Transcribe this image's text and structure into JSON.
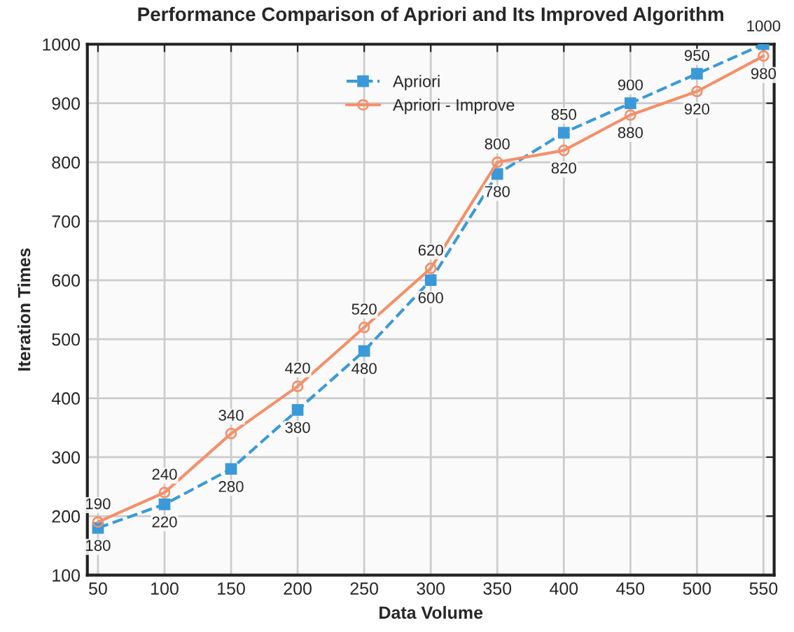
{
  "chart_data": {
    "type": "line",
    "title": "Performance Comparison of Apriori and Its Improved Algorithm",
    "xlabel": "Data Volume",
    "ylabel": "Iteration Times",
    "x": [
      50,
      100,
      150,
      200,
      250,
      300,
      350,
      400,
      450,
      500,
      550
    ],
    "series": [
      {
        "name": "Apriori",
        "color": "#3a9ad9",
        "marker": "square",
        "line_style": "dashed",
        "values": [
          180,
          220,
          280,
          380,
          480,
          600,
          780,
          850,
          900,
          950,
          1000
        ]
      },
      {
        "name": "Apriori - Improve",
        "color": "#f4906a",
        "marker": "circle",
        "line_style": "solid",
        "values": [
          190,
          240,
          340,
          420,
          520,
          620,
          800,
          820,
          880,
          920,
          980
        ]
      }
    ],
    "xlim": [
      42,
      558
    ],
    "xticks": [
      50,
      100,
      150,
      200,
      250,
      300,
      350,
      400,
      450,
      500,
      550
    ],
    "ylim": [
      100,
      1000
    ],
    "yticks": [
      100,
      200,
      300,
      400,
      500,
      600,
      700,
      800,
      900,
      1000
    ],
    "grid": true,
    "legend": "top",
    "data_labels": true
  }
}
